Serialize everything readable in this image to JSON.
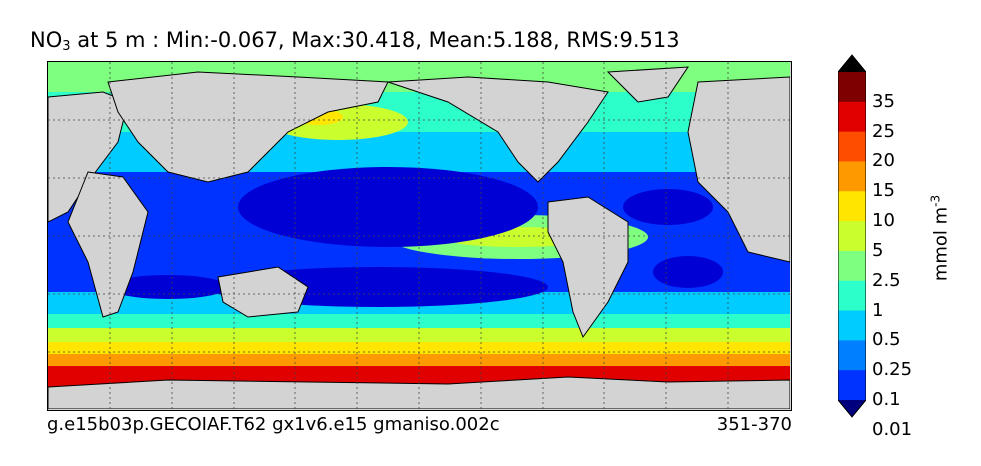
{
  "title": {
    "variable": "NO",
    "subscript": "3",
    "rest": " at 5 m : Min:-0.067, Max:30.418, Mean:5.188, RMS:9.513"
  },
  "footer": {
    "case_name": "g.e15b03p.GECOIAF.T62 gx1v6.e15 gmaniso.002c",
    "years": "351-370"
  },
  "colorbar": {
    "unit_base": "mmol m",
    "unit_exp": "-3",
    "tick_labels": [
      "35",
      "25",
      "20",
      "15",
      "10",
      "5",
      "2.5",
      "1",
      "0.5",
      "0.25",
      "0.1",
      "0.01"
    ],
    "colors": [
      "#00007f",
      "#0000d4",
      "#0033ff",
      "#0080ff",
      "#00ccff",
      "#2dffca",
      "#7fff7f",
      "#caff2d",
      "#ffe600",
      "#ff9900",
      "#ff4d00",
      "#e00000",
      "#7f0000"
    ]
  },
  "map": {
    "land_color": "#d3d3d3"
  }
}
